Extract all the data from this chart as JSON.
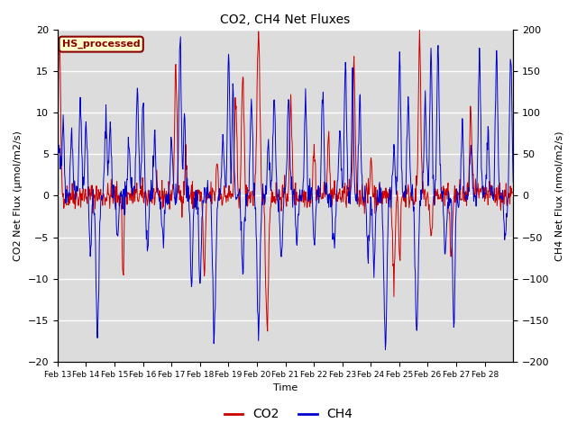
{
  "title": "CO2, CH4 Net Fluxes",
  "xlabel": "Time",
  "ylabel_left": "CO2 Net Flux (μmol/m2/s)",
  "ylabel_right": "CH4 Net Flux (nmol/m2/s)",
  "ylim_left": [
    -20,
    20
  ],
  "ylim_right": [
    -200,
    200
  ],
  "yticks_left": [
    -20,
    -15,
    -10,
    -5,
    0,
    5,
    10,
    15,
    20
  ],
  "yticks_right": [
    -200,
    -150,
    -100,
    -50,
    0,
    50,
    100,
    150,
    200
  ],
  "co2_color": "#CC0000",
  "ch4_color": "#0000CC",
  "bg_color": "#DCDCDC",
  "legend_label_co2": "CO2",
  "legend_label_ch4": "CH4",
  "annotation_text": "HS_processed",
  "annotation_bg": "#FFFFCC",
  "annotation_border": "#8B0000",
  "x_tick_labels": [
    "Feb 13",
    "Feb 14",
    "Feb 15",
    "Feb 16",
    "Feb 17",
    "Feb 18",
    "Feb 19",
    "Feb 20",
    "Feb 21",
    "Feb 22",
    "Feb 23",
    "Feb 24",
    "Feb 25",
    "Feb 26",
    "Feb 27",
    "Feb 28"
  ],
  "n_points": 960,
  "seed": 42
}
